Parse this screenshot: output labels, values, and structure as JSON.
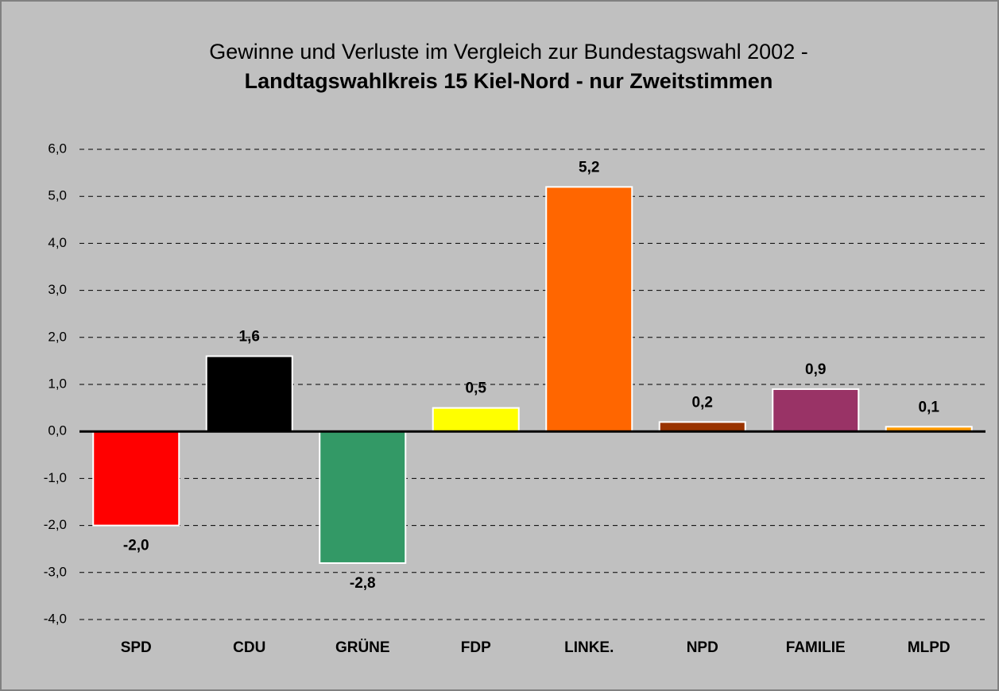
{
  "chart_data": {
    "type": "bar",
    "title": "Gewinne und Verluste im Vergleich zur Bundestagswahl 2002 -",
    "subtitle": "Landtagswahlkreis 15 Kiel-Nord - nur Zweitstimmen",
    "categories": [
      "SPD",
      "CDU",
      "GRÜNE",
      "FDP",
      "LINKE.",
      "NPD",
      "FAMILIE",
      "MLPD"
    ],
    "values": [
      -2.0,
      1.6,
      -2.8,
      0.5,
      5.2,
      0.2,
      0.9,
      0.1
    ],
    "value_labels": [
      "-2,0",
      "1,6",
      "-2,8",
      "0,5",
      "5,2",
      "0,2",
      "0,9",
      "0,1"
    ],
    "colors": [
      "#ff0000",
      "#000000",
      "#339966",
      "#ffff00",
      "#ff6600",
      "#993300",
      "#993366",
      "#ff9900"
    ],
    "ylim": [
      -4,
      6
    ],
    "yticks": [
      {
        "value": -4,
        "label": "-4,0"
      },
      {
        "value": -3,
        "label": "-3,0"
      },
      {
        "value": -2,
        "label": "-2,0"
      },
      {
        "value": -1,
        "label": "-1,0"
      },
      {
        "value": 0,
        "label": "0,0"
      },
      {
        "value": 1,
        "label": "1,0"
      },
      {
        "value": 2,
        "label": "2,0"
      },
      {
        "value": 3,
        "label": "3,0"
      },
      {
        "value": 4,
        "label": "4,0"
      },
      {
        "value": 5,
        "label": "5,0"
      },
      {
        "value": 6,
        "label": "6,0"
      }
    ],
    "grid": true
  }
}
